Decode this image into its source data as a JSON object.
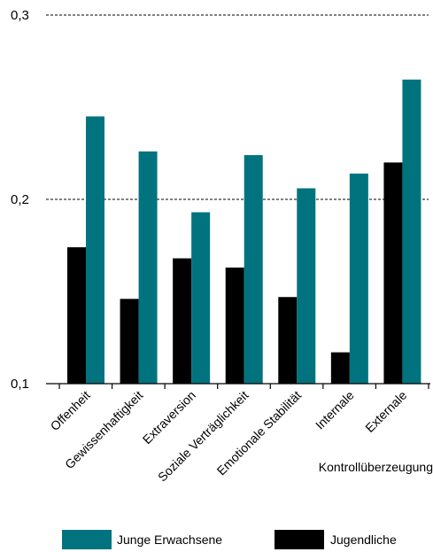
{
  "chart_data": {
    "type": "bar",
    "categories": [
      "Offenheit",
      "Gewissenhaftigkeit",
      "Extraversion",
      "Soziale Verträglichkeit",
      "Emotionale Stabilität",
      "Internale",
      "Externale"
    ],
    "series": [
      {
        "name": "Jugendliche",
        "color": "#000000",
        "values": [
          0.174,
          0.146,
          0.168,
          0.163,
          0.147,
          0.117,
          0.22
        ]
      },
      {
        "name": "Junge Erwachsene",
        "color": "#00737f",
        "values": [
          0.245,
          0.226,
          0.193,
          0.224,
          0.206,
          0.214,
          0.265
        ]
      }
    ],
    "y_ticks": [
      "0,1",
      "0,2",
      "0,3"
    ],
    "ylim": [
      0.1,
      0.3
    ],
    "xlabel": "Kontrollüberzeugung",
    "ylabel": "",
    "grid": "dashed horizontal at 0,2 and 0,3",
    "legend": {
      "position": "bottom",
      "items": [
        {
          "label": "Junge Erwachsene",
          "color": "#00737f"
        },
        {
          "label": "Jugendliche",
          "color": "#000000"
        }
      ]
    }
  }
}
